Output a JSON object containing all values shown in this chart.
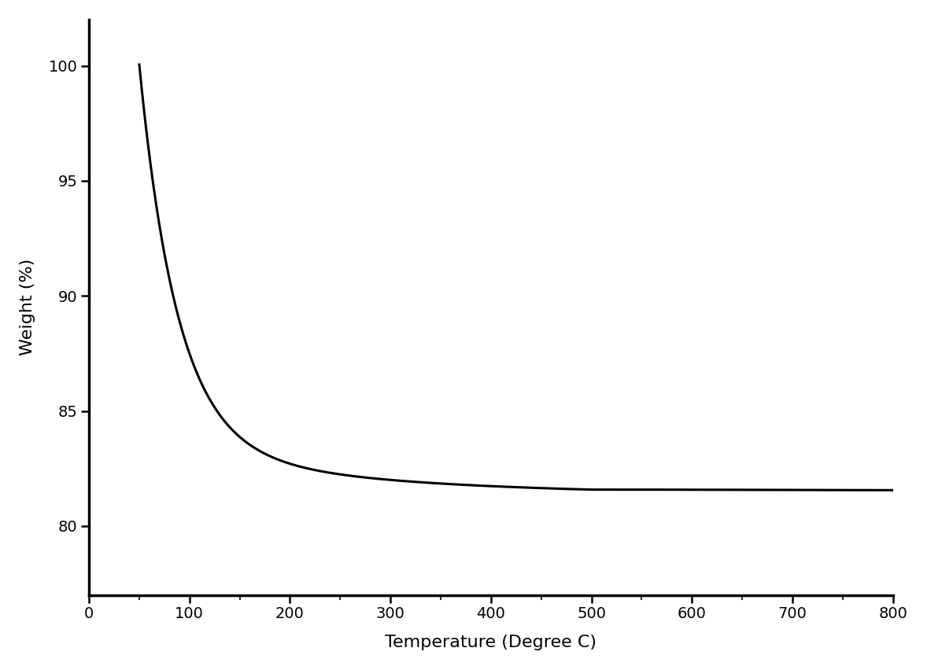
{
  "title": "",
  "xlabel": "Temperature (Degree C)",
  "ylabel": "Weight (%)",
  "xlim": [
    0,
    800
  ],
  "ylim": [
    77,
    102
  ],
  "xticks": [
    0,
    100,
    200,
    300,
    400,
    500,
    600,
    700,
    800
  ],
  "yticks": [
    80,
    85,
    90,
    95,
    100
  ],
  "line_color": "#000000",
  "line_width": 2.2,
  "background_color": "#ffffff",
  "xlabel_fontsize": 16,
  "ylabel_fontsize": 16,
  "tick_fontsize": 14,
  "spine_linewidth": 2.5
}
